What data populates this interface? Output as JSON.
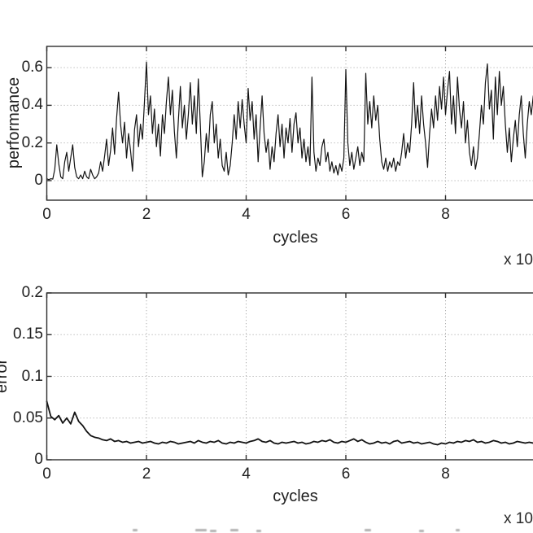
{
  "figure": {
    "background": "#ffffff",
    "axis_color": "#2e2e2e",
    "grid_color": "#aeaeae",
    "line_color": "#121212",
    "tick_label_color": "#1f1f1f"
  },
  "chart_data": [
    {
      "type": "line",
      "title": "",
      "xlabel": "cycles",
      "ylabel": "performance",
      "x_axis_multiplier": "x 10",
      "xlim": [
        0,
        10
      ],
      "ylim": [
        -0.104,
        0.713
      ],
      "xticks": [
        0,
        2,
        4,
        6,
        8
      ],
      "xtick_labels": [
        "0",
        "2",
        "4",
        "6",
        "8"
      ],
      "yticks": [
        0,
        0.2,
        0.4,
        0.6
      ],
      "ytick_labels": [
        "0",
        "0.2",
        "0.4",
        "0.6"
      ],
      "grid": true,
      "legend": "none",
      "x_start": 0,
      "x_step": 0.04,
      "values": [
        0.01,
        0.005,
        0.01,
        0.008,
        0.06,
        0.19,
        0.09,
        0.02,
        0.01,
        0.1,
        0.15,
        0.05,
        0.12,
        0.19,
        0.07,
        0.02,
        0.01,
        0.03,
        0.01,
        0.05,
        0.02,
        0.01,
        0.06,
        0.03,
        0.01,
        0.02,
        0.04,
        0.1,
        0.05,
        0.13,
        0.22,
        0.08,
        0.16,
        0.28,
        0.14,
        0.33,
        0.47,
        0.3,
        0.2,
        0.31,
        0.12,
        0.25,
        0.16,
        0.05,
        0.27,
        0.35,
        0.18,
        0.3,
        0.22,
        0.42,
        0.63,
        0.35,
        0.45,
        0.25,
        0.38,
        0.18,
        0.3,
        0.13,
        0.35,
        0.25,
        0.42,
        0.55,
        0.35,
        0.48,
        0.26,
        0.12,
        0.32,
        0.5,
        0.28,
        0.4,
        0.22,
        0.35,
        0.52,
        0.3,
        0.45,
        0.25,
        0.54,
        0.3,
        0.02,
        0.1,
        0.25,
        0.15,
        0.35,
        0.42,
        0.2,
        0.3,
        0.12,
        0.22,
        0.08,
        0.05,
        0.15,
        0.03,
        0.08,
        0.2,
        0.35,
        0.22,
        0.42,
        0.28,
        0.43,
        0.3,
        0.2,
        0.49,
        0.32,
        0.42,
        0.22,
        0.35,
        0.1,
        0.28,
        0.45,
        0.25,
        0.15,
        0.22,
        0.06,
        0.18,
        0.1,
        0.25,
        0.35,
        0.18,
        0.3,
        0.12,
        0.28,
        0.2,
        0.33,
        0.15,
        0.3,
        0.36,
        0.2,
        0.28,
        0.12,
        0.22,
        0.1,
        0.18,
        0.08,
        0.55,
        0.15,
        0.05,
        0.12,
        0.08,
        0.18,
        0.22,
        0.1,
        0.15,
        0.05,
        0.1,
        0.04,
        0.08,
        0.03,
        0.09,
        0.05,
        0.12,
        0.59,
        0.2,
        0.08,
        0.15,
        0.06,
        0.12,
        0.18,
        0.08,
        0.15,
        0.1,
        0.57,
        0.3,
        0.42,
        0.28,
        0.45,
        0.32,
        0.4,
        0.22,
        0.1,
        0.06,
        0.12,
        0.05,
        0.1,
        0.07,
        0.12,
        0.05,
        0.1,
        0.08,
        0.15,
        0.25,
        0.12,
        0.2,
        0.15,
        0.3,
        0.52,
        0.28,
        0.4,
        0.25,
        0.45,
        0.3,
        0.2,
        0.07,
        0.25,
        0.38,
        0.28,
        0.45,
        0.32,
        0.5,
        0.38,
        0.55,
        0.35,
        0.48,
        0.58,
        0.3,
        0.45,
        0.25,
        0.55,
        0.38,
        0.28,
        0.42,
        0.2,
        0.32,
        0.15,
        0.08,
        0.18,
        0.06,
        0.12,
        0.25,
        0.4,
        0.3,
        0.52,
        0.62,
        0.38,
        0.48,
        0.22,
        0.55,
        0.35,
        0.58,
        0.4,
        0.5,
        0.3,
        0.15,
        0.28,
        0.1,
        0.22,
        0.32,
        0.18,
        0.35,
        0.45,
        0.25,
        0.12,
        0.3,
        0.42,
        0.35,
        0.45
      ]
    },
    {
      "type": "line",
      "title": "",
      "xlabel": "cycles",
      "ylabel": "error",
      "x_axis_multiplier": "x 10",
      "xlim": [
        0,
        10
      ],
      "ylim": [
        0,
        0.2
      ],
      "xticks": [
        0,
        2,
        4,
        6,
        8
      ],
      "xtick_labels": [
        "0",
        "2",
        "4",
        "6",
        "8"
      ],
      "yticks": [
        0,
        0.05,
        0.1,
        0.15,
        0.2
      ],
      "ytick_labels": [
        "0",
        "0.05",
        "0.1",
        "0.15",
        "0.2"
      ],
      "grid": true,
      "legend": "none",
      "x_start": 0,
      "x_step": 0.08,
      "values": [
        0.07,
        0.052,
        0.048,
        0.053,
        0.044,
        0.05,
        0.043,
        0.057,
        0.046,
        0.041,
        0.034,
        0.029,
        0.027,
        0.026,
        0.024,
        0.023,
        0.025,
        0.022,
        0.023,
        0.021,
        0.022,
        0.02,
        0.021,
        0.022,
        0.02,
        0.021,
        0.022,
        0.02,
        0.019,
        0.021,
        0.02,
        0.022,
        0.021,
        0.019,
        0.02,
        0.021,
        0.022,
        0.02,
        0.023,
        0.021,
        0.02,
        0.022,
        0.021,
        0.023,
        0.02,
        0.019,
        0.021,
        0.02,
        0.022,
        0.021,
        0.02,
        0.022,
        0.023,
        0.025,
        0.022,
        0.021,
        0.023,
        0.02,
        0.019,
        0.021,
        0.02,
        0.021,
        0.022,
        0.02,
        0.021,
        0.019,
        0.02,
        0.022,
        0.021,
        0.023,
        0.022,
        0.024,
        0.021,
        0.02,
        0.022,
        0.021,
        0.023,
        0.025,
        0.022,
        0.024,
        0.021,
        0.019,
        0.02,
        0.022,
        0.02,
        0.021,
        0.019,
        0.022,
        0.023,
        0.02,
        0.021,
        0.022,
        0.02,
        0.021,
        0.019,
        0.02,
        0.021,
        0.019,
        0.018,
        0.02,
        0.019,
        0.021,
        0.02,
        0.022,
        0.021,
        0.023,
        0.022,
        0.024,
        0.021,
        0.022,
        0.02,
        0.021,
        0.023,
        0.022,
        0.02,
        0.021,
        0.019,
        0.02,
        0.022,
        0.021,
        0.02,
        0.021,
        0.02
      ]
    }
  ]
}
